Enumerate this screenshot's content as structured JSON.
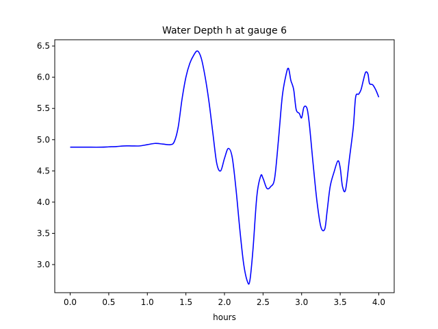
{
  "chart_data": {
    "type": "line",
    "title": "Water Depth h at gauge 6",
    "xlabel": "hours",
    "ylabel": "",
    "xlim": [
      -0.2,
      4.2
    ],
    "ylim": [
      2.55,
      6.6
    ],
    "xticks": [
      0.0,
      0.5,
      1.0,
      1.5,
      2.0,
      2.5,
      3.0,
      3.5,
      4.0
    ],
    "xtick_labels": [
      "0.0",
      "0.5",
      "1.0",
      "1.5",
      "2.0",
      "2.5",
      "3.0",
      "3.5",
      "4.0"
    ],
    "yticks": [
      3.0,
      3.5,
      4.0,
      4.5,
      5.0,
      5.5,
      6.0,
      6.5
    ],
    "ytick_labels": [
      "3.0",
      "3.5",
      "4.0",
      "4.5",
      "5.0",
      "5.5",
      "6.0",
      "6.5"
    ],
    "grid": false,
    "series": [
      {
        "color": "#0000ff",
        "x": [
          0.0,
          0.2,
          0.4,
          0.5,
          0.6,
          0.7,
          0.8,
          0.9,
          1.0,
          1.1,
          1.2,
          1.3,
          1.35,
          1.4,
          1.45,
          1.5,
          1.55,
          1.6,
          1.65,
          1.7,
          1.75,
          1.8,
          1.85,
          1.9,
          1.95,
          2.0,
          2.05,
          2.1,
          2.15,
          2.2,
          2.25,
          2.3,
          2.33,
          2.37,
          2.42,
          2.47,
          2.5,
          2.55,
          2.6,
          2.65,
          2.7,
          2.75,
          2.8,
          2.83,
          2.86,
          2.88,
          2.9,
          2.93,
          2.97,
          3.0,
          3.03,
          3.07,
          3.1,
          3.15,
          3.2,
          3.25,
          3.3,
          3.33,
          3.37,
          3.42,
          3.47,
          3.5,
          3.53,
          3.57,
          3.62,
          3.67,
          3.7,
          3.74,
          3.77,
          3.8,
          3.83,
          3.86,
          3.88,
          3.92,
          3.96,
          4.0
        ],
        "values": [
          4.88,
          4.88,
          4.88,
          4.885,
          4.89,
          4.9,
          4.9,
          4.9,
          4.92,
          4.94,
          4.93,
          4.92,
          4.97,
          5.2,
          5.65,
          6.0,
          6.22,
          6.35,
          6.42,
          6.3,
          6.0,
          5.6,
          5.1,
          4.62,
          4.5,
          4.7,
          4.86,
          4.72,
          4.2,
          3.55,
          3.0,
          2.72,
          2.75,
          3.25,
          4.1,
          4.42,
          4.38,
          4.22,
          4.25,
          4.38,
          5.0,
          5.7,
          6.05,
          6.14,
          5.95,
          5.88,
          5.78,
          5.48,
          5.42,
          5.35,
          5.52,
          5.5,
          5.25,
          4.6,
          4.0,
          3.6,
          3.57,
          3.85,
          4.25,
          4.48,
          4.66,
          4.55,
          4.25,
          4.2,
          4.7,
          5.2,
          5.68,
          5.73,
          5.8,
          5.95,
          6.08,
          6.05,
          5.9,
          5.88,
          5.8,
          5.68
        ]
      }
    ]
  }
}
